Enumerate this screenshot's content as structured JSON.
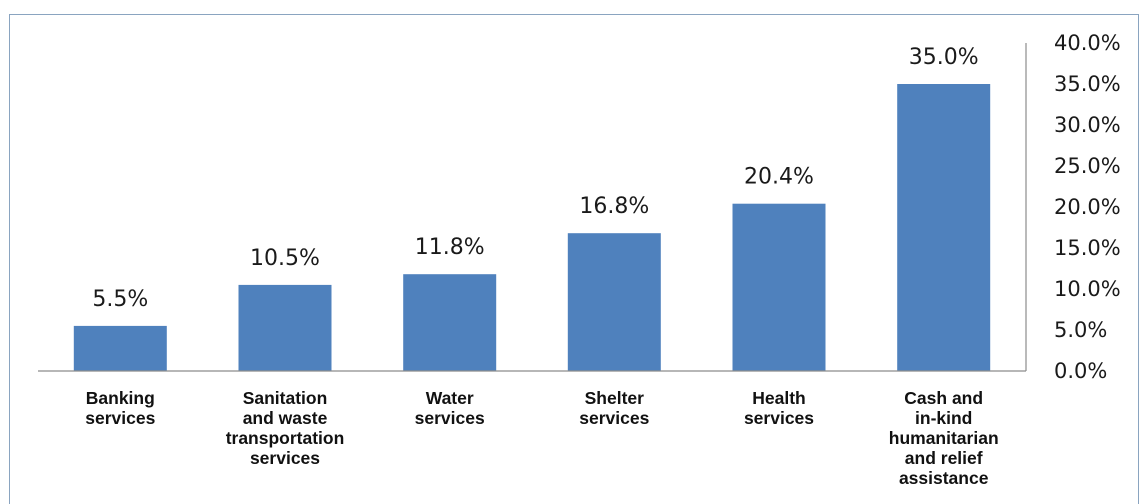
{
  "chart_data": {
    "type": "bar",
    "categories": [
      [
        "Banking",
        "services"
      ],
      [
        "Sanitation",
        "and waste",
        "transportation",
        "services"
      ],
      [
        "Water",
        "services"
      ],
      [
        "Shelter",
        "services"
      ],
      [
        "Health",
        "services"
      ],
      [
        "Cash and",
        "in-kind",
        "humanitarian",
        "and relief",
        "assistance"
      ]
    ],
    "values": [
      5.5,
      10.5,
      11.8,
      16.8,
      20.4,
      35.0
    ],
    "value_labels": [
      "5.5%",
      "10.5%",
      "11.8%",
      "16.8%",
      "20.4%",
      "35.0%"
    ],
    "y_ticks": [
      "0.0%",
      "5.0%",
      "10.0%",
      "15.0%",
      "20.0%",
      "25.0%",
      "30.0%",
      "35.0%",
      "40.0%"
    ],
    "ylim": [
      0,
      40
    ],
    "y_axis_side": "right",
    "grid": false,
    "legend": false,
    "title": "",
    "xlabel": "",
    "ylabel": "",
    "colors": {
      "bar": "#4f81bd",
      "axis": "#8c8c8c",
      "frame": "#8aa4c0"
    }
  }
}
